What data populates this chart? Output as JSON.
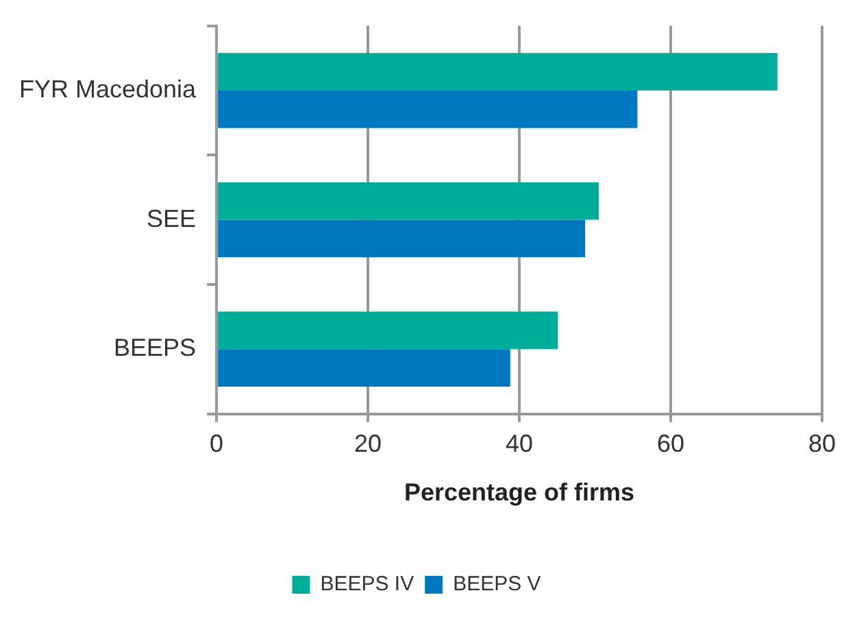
{
  "chart_data": {
    "type": "bar",
    "orientation": "horizontal",
    "categories": [
      "FYR Macedonia",
      "SEE",
      "BEEPS"
    ],
    "series": [
      {
        "name": "BEEPS IV",
        "color": "#00ad9b",
        "values": [
          74.1,
          50.5,
          45.1
        ]
      },
      {
        "name": "BEEPS V",
        "color": "#0077bf",
        "values": [
          55.6,
          48.7,
          38.8
        ]
      }
    ],
    "xlabel": "Percentage of firms",
    "xlim": [
      0,
      80
    ],
    "xticks": [
      0,
      20,
      40,
      60,
      80
    ],
    "grid": "x",
    "legend": "bottom"
  }
}
